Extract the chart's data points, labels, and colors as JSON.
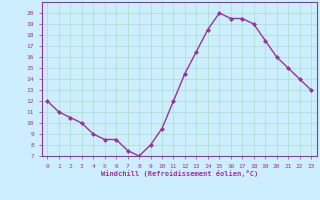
{
  "x": [
    0,
    1,
    2,
    3,
    4,
    5,
    6,
    7,
    8,
    9,
    10,
    11,
    12,
    13,
    14,
    15,
    16,
    17,
    18,
    19,
    20,
    21,
    22,
    23
  ],
  "y": [
    12,
    11,
    10.5,
    10,
    9,
    8.5,
    8.5,
    7.5,
    7,
    8,
    9.5,
    12,
    14.5,
    16.5,
    18.5,
    20,
    19.5,
    19.5,
    19,
    17.5,
    16,
    15,
    14,
    13
  ],
  "line_color": "#993399",
  "marker": "D",
  "marker_size": 2.0,
  "bg_color": "#cceeff",
  "grid_color": "#aaddcc",
  "xlabel": "Windchill (Refroidissement éolien,°C)",
  "xlabel_color": "#993399",
  "tick_color": "#993399",
  "ylim": [
    7,
    21
  ],
  "xlim": [
    -0.5,
    23.5
  ],
  "yticks": [
    7,
    8,
    9,
    10,
    11,
    12,
    13,
    14,
    15,
    16,
    17,
    18,
    19,
    20
  ],
  "xticks": [
    0,
    1,
    2,
    3,
    4,
    5,
    6,
    7,
    8,
    9,
    10,
    11,
    12,
    13,
    14,
    15,
    16,
    17,
    18,
    19,
    20,
    21,
    22,
    23
  ],
  "line_width": 1.0,
  "spine_color": "#993399"
}
